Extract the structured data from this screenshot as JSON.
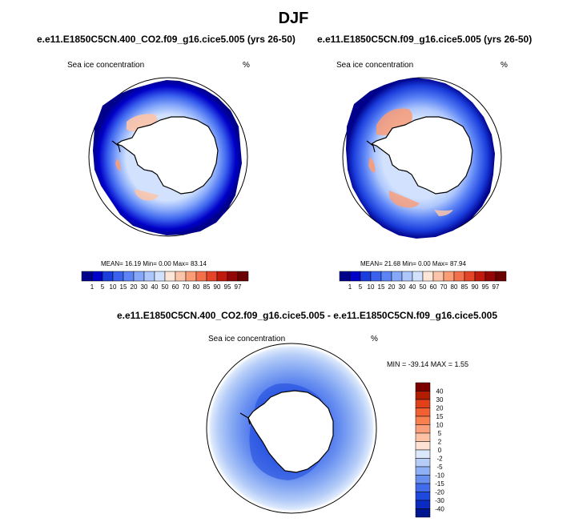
{
  "header": {
    "season": "DJF"
  },
  "panels": [
    {
      "title": "e.e11.E1850C5CN.400_CO2.f09_g16.cice5.005 (yrs 26-50)",
      "variable": "Sea ice concentration",
      "units": "%",
      "mean_label": "MEAN=",
      "mean": "16.19",
      "min_label": "Min=",
      "min": "0.00",
      "max_label": "Max=",
      "max": "83.14"
    },
    {
      "title": "e.e11.E1850C5CN.f09_g16.cice5.005 (yrs 26-50)",
      "variable": "Sea ice concentration",
      "units": "%",
      "mean_label": "MEAN=",
      "mean": "21.68",
      "min_label": "Min=",
      "min": "0.00",
      "max_label": "Max=",
      "max": "87.94"
    }
  ],
  "diff_panel": {
    "title": "e.e11.E1850C5CN.400_CO2.f09_g16.cice5.005 - e.e11.E1850C5CN.f09_g16.cice5.005",
    "variable": "Sea ice concentration",
    "units": "%",
    "stats": "MIN = -39.14 MAX =   1.55"
  },
  "chart_data": [
    {
      "type": "heatmap",
      "title": "e.e11.E1850C5CN.400_CO2.f09_g16.cice5.005 (yrs 26-50)",
      "projection": "south polar stereographic",
      "variable": "Sea ice concentration (%)",
      "stats": {
        "mean": 16.19,
        "min": 0.0,
        "max": 83.14
      },
      "colorbar_levels": [
        1,
        5,
        10,
        15,
        20,
        30,
        40,
        50,
        60,
        70,
        80,
        85,
        90,
        95,
        97
      ]
    },
    {
      "type": "heatmap",
      "title": "e.e11.E1850C5CN.f09_g16.cice5.005 (yrs 26-50)",
      "projection": "south polar stereographic",
      "variable": "Sea ice concentration (%)",
      "stats": {
        "mean": 21.68,
        "min": 0.0,
        "max": 87.94
      },
      "colorbar_levels": [
        1,
        5,
        10,
        15,
        20,
        30,
        40,
        50,
        60,
        70,
        80,
        85,
        90,
        95,
        97
      ]
    },
    {
      "type": "heatmap",
      "title": "e.e11.E1850C5CN.400_CO2.f09_g16.cice5.005 - e.e11.E1850C5CN.f09_g16.cice5.005",
      "projection": "south polar stereographic",
      "variable": "Sea ice concentration difference (%)",
      "stats": {
        "min": -39.14,
        "max": 1.55
      },
      "colorbar_levels": [
        40,
        30,
        20,
        15,
        10,
        5,
        2,
        0,
        -2,
        -5,
        -10,
        -15,
        -20,
        -30,
        -40
      ]
    }
  ],
  "abs_colorbar": {
    "labels": [
      "1",
      "5",
      "10",
      "15",
      "20",
      "30",
      "40",
      "50",
      "60",
      "70",
      "80",
      "85",
      "90",
      "95",
      "97"
    ],
    "colors": [
      "#00008a",
      "#0000c8",
      "#1a3ddc",
      "#3a62ee",
      "#5c84f6",
      "#86a8fa",
      "#adc6fc",
      "#d2e2fe",
      "#fde6d8",
      "#fcc4a8",
      "#fa9c76",
      "#f4704c",
      "#e44428",
      "#c01a0e",
      "#940606",
      "#6a0000"
    ]
  },
  "diff_colorbar": {
    "labels": [
      "40",
      "30",
      "20",
      "15",
      "10",
      "5",
      "2",
      "0",
      "-2",
      "-5",
      "-10",
      "-15",
      "-20",
      "-30",
      "-40"
    ],
    "colors": [
      "#7a0000",
      "#b01d00",
      "#e0401a",
      "#f25f32",
      "#f7804e",
      "#fba07a",
      "#fdc2a6",
      "#fee2d4",
      "#dce9fc",
      "#b6cdf8",
      "#8fb0f4",
      "#688ff0",
      "#416bea",
      "#1d49dc",
      "#0a2ac2",
      "#00168e"
    ]
  }
}
